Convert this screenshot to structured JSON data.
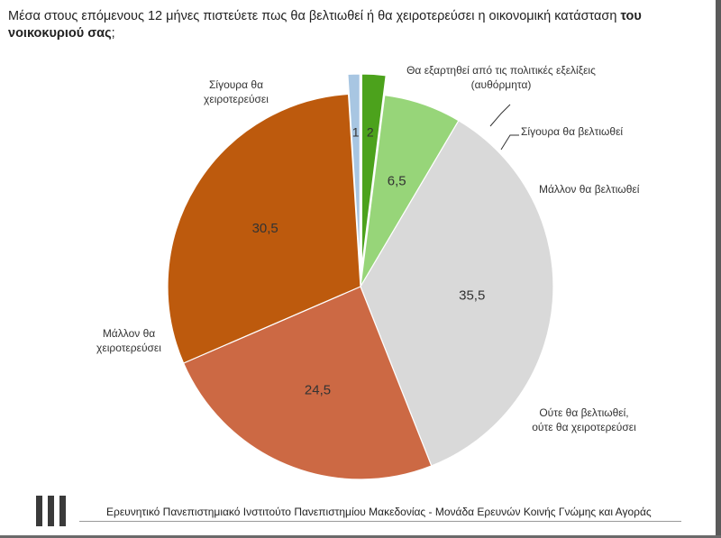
{
  "question": {
    "text_normal": "Μέσα στους επόμενους 12 μήνες πιστεύετε πως θα βελτιωθεί ή θα χειροτερεύσει η οικονομική κατάσταση ",
    "text_bold": "του νοικοκυριού σας",
    "text_end": ";"
  },
  "chart_data": {
    "type": "pie",
    "start": "12 o'clock, clockwise",
    "slices": [
      {
        "label": "Σίγουρα θα βελτιωθεί",
        "label_lines": [
          "Σίγουρα θα βελτιωθεί"
        ],
        "value": 2,
        "value_label": "2",
        "color": "#4ca21c",
        "exploded": true
      },
      {
        "label": "Μάλλον θα βελτιωθεί",
        "label_lines": [
          "Μάλλον θα βελτιωθεί"
        ],
        "value": 6.5,
        "value_label": "6,5",
        "color": "#97d579",
        "exploded": false
      },
      {
        "label": "Ούτε θα βελτιωθεί, ούτε θα χειροτερεύσει",
        "label_lines": [
          "Ούτε θα βελτιωθεί,",
          "ούτε θα χειροτερεύσει"
        ],
        "value": 35.5,
        "value_label": "35,5",
        "color": "#d9d9d9",
        "exploded": false
      },
      {
        "label": "Μάλλον θα χειροτερεύσει",
        "label_lines": [
          "Μάλλον θα",
          "χειροτερεύσει"
        ],
        "value": 24.5,
        "value_label": "24,5",
        "color": "#cc6944",
        "exploded": false
      },
      {
        "label": "Σίγουρα θα χειροτερεύσει",
        "label_lines": [
          "Σίγουρα θα",
          "χειροτερεύσει"
        ],
        "value": 30.5,
        "value_label": "30,5",
        "color": "#bd5a0d",
        "exploded": false
      },
      {
        "label": "Θα εξαρτηθεί από τις πολιτικές εξελίξεις (αυθόρμητα)",
        "label_lines": [
          "Θα εξαρτηθεί από τις πολιτικές εξελίξεις",
          "(αυθόρμητα)"
        ],
        "value": 1,
        "value_label": "1",
        "color": "#a8c6e2",
        "exploded": true
      }
    ]
  },
  "footer": {
    "text": "Ερευνητικό Πανεπιστημιακό Ινστιτούτο Πανεπιστημίου Μακεδονίας - Μονάδα Ερευνών Κοινής Γνώμης και Αγοράς",
    "logo": "university-logo"
  }
}
